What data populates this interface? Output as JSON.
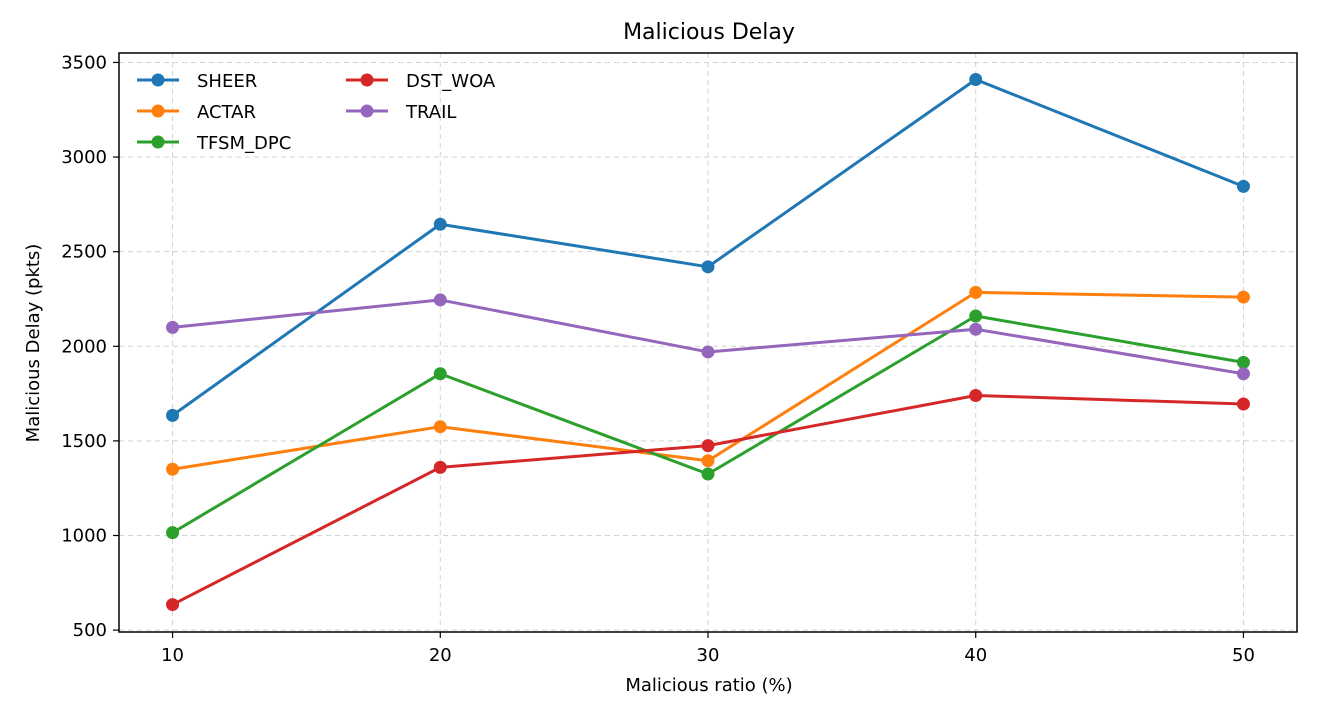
{
  "chart_data": {
    "type": "line",
    "title": "Malicious Delay",
    "xlabel": "Malicious ratio (%)",
    "ylabel": "Malicious Delay (pkts)",
    "x": [
      10,
      20,
      30,
      40,
      50
    ],
    "xticks": [
      "10",
      "20",
      "30",
      "40",
      "50"
    ],
    "yticks": [
      "500",
      "1000",
      "1500",
      "2000",
      "2500",
      "3000",
      "3500"
    ],
    "xlim": [
      8,
      52
    ],
    "ylim": [
      490,
      3550
    ],
    "grid": true,
    "legend_position": "upper-left",
    "legend_columns": 2,
    "marker": "circle",
    "series": [
      {
        "name": "SHEER",
        "color": "#1f77b4",
        "values": [
          1635,
          2645,
          2420,
          3410,
          2845
        ]
      },
      {
        "name": "ACTAR",
        "color": "#ff7f0e",
        "values": [
          1350,
          1575,
          1395,
          2285,
          2260
        ]
      },
      {
        "name": "TFSM_DPC",
        "color": "#2ca02c",
        "values": [
          1015,
          1855,
          1325,
          2160,
          1915
        ]
      },
      {
        "name": "DST_WOA",
        "color": "#d62728",
        "values": [
          635,
          1360,
          1475,
          1740,
          1695
        ]
      },
      {
        "name": "TRAIL",
        "color": "#9467bd",
        "values": [
          2100,
          2245,
          1970,
          2090,
          1855
        ]
      }
    ]
  }
}
